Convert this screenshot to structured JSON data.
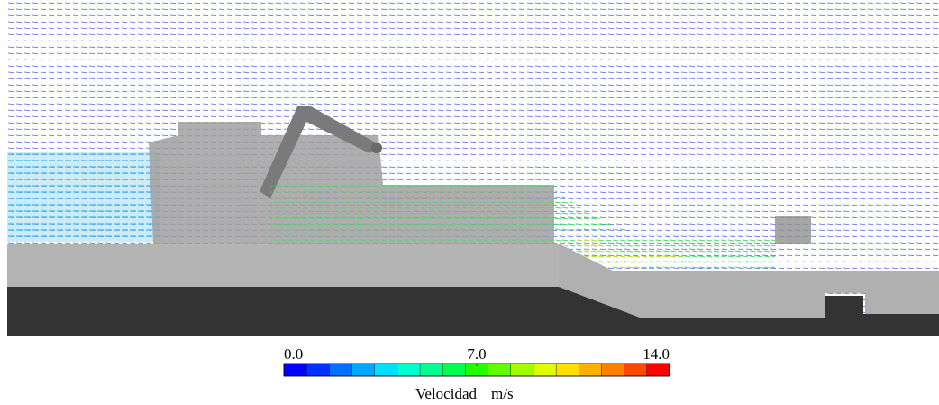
{
  "colorbar": {
    "lim": [
      0,
      14
    ],
    "ticks": [
      {
        "value": 0,
        "label": "0.0"
      },
      {
        "value": 7,
        "label": "7.0"
      },
      {
        "value": 14,
        "label": "14.0"
      }
    ],
    "label": "Velocidad",
    "unit": "m/s",
    "colors": [
      "#0000ff",
      "#0030ff",
      "#0070ff",
      "#00a8ff",
      "#00e0ff",
      "#00ffd0",
      "#00ff90",
      "#00ff50",
      "#20ff00",
      "#60ff00",
      "#a0ff00",
      "#e0ff00",
      "#ffe000",
      "#ffb000",
      "#ff8000",
      "#ff4800",
      "#ff0000"
    ]
  }
}
